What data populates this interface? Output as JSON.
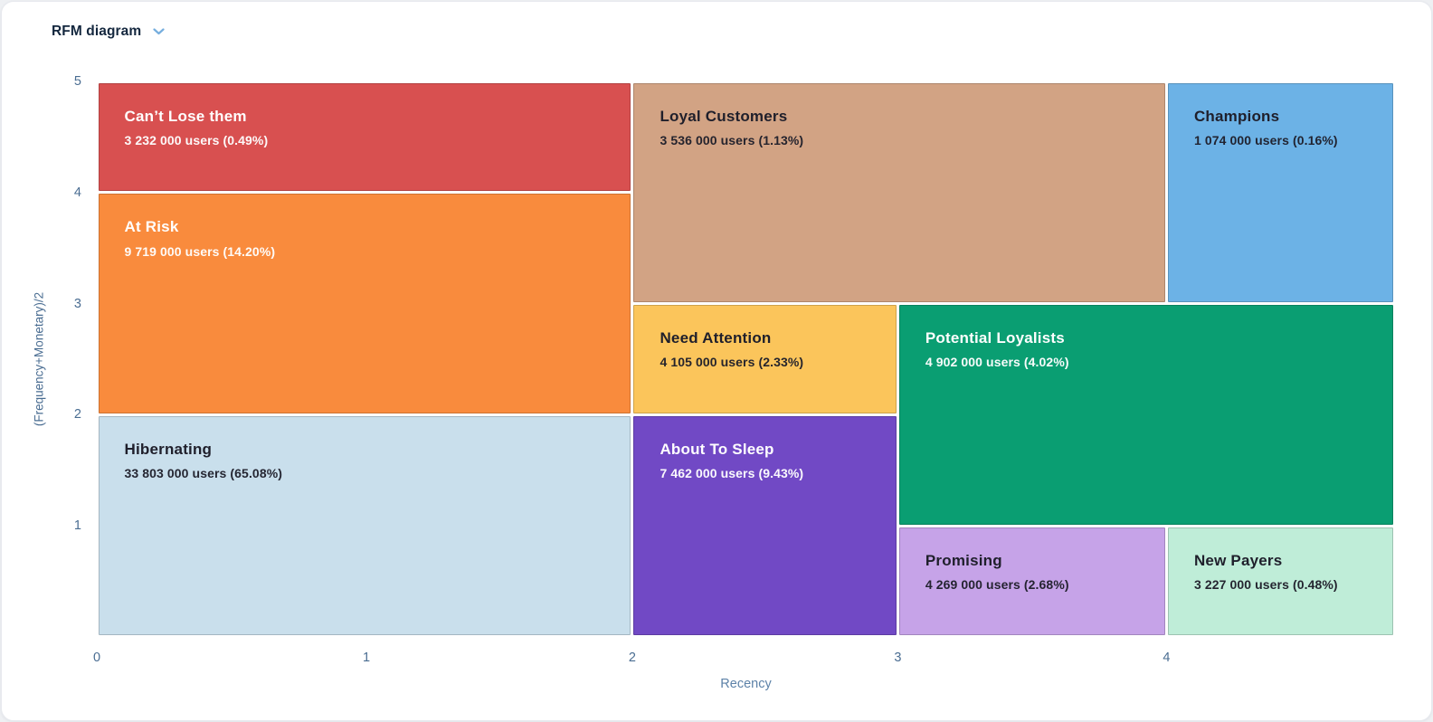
{
  "header": {
    "title": "RFM diagram",
    "dropdown_icon": "chevron-down-icon"
  },
  "colors": {
    "page_bg": "#eef0f3",
    "card_bg": "#ffffff",
    "title": "#14273e",
    "tick": "#4a6d92",
    "axis_label": "#5d82a8",
    "accent_blue": "#76aede",
    "dark_text": "#1f1f2b",
    "light_text": "#ffffff"
  },
  "chart_data": {
    "type": "heatmap",
    "variant": "RFM segment mosaic (rectangular area map)",
    "title": "RFM diagram",
    "xlabel": "Recency",
    "ylabel": "(Frequency+Monetary)/2",
    "x_range": [
      0,
      5
    ],
    "y_range": [
      0,
      5
    ],
    "x_ticks": [
      0,
      1,
      2,
      3,
      4
    ],
    "y_ticks": [
      1,
      2,
      3,
      4,
      5
    ],
    "grid": false,
    "legend": false,
    "x_stops": [
      0,
      0.2077,
      0.4125,
      0.617,
      0.824,
      1.0
    ],
    "segments": [
      {
        "name": "Can’t Lose them",
        "users": 3232000,
        "users_text": "3 232 000",
        "percent": "0.49%",
        "users_label": "3 232 000 users (0.49%)",
        "x0": 0,
        "x1": 2,
        "y0": 4,
        "y1": 5,
        "color": "#d85050",
        "text": "light"
      },
      {
        "name": "Loyal Customers",
        "users": 3536000,
        "users_text": "3 536 000",
        "percent": "1.13%",
        "users_label": "3 536 000 users (1.13%)",
        "x0": 2,
        "x1": 4,
        "y0": 3,
        "y1": 5,
        "color": "#d2a384",
        "text": "dark"
      },
      {
        "name": "Champions",
        "users": 1074000,
        "users_text": "1 074 000",
        "percent": "0.16%",
        "users_label": "1 074 000 users (0.16%)",
        "x0": 4,
        "x1": 5,
        "y0": 3,
        "y1": 5,
        "color": "#6cb2e6",
        "text": "dark"
      },
      {
        "name": "At Risk",
        "users": 9719000,
        "users_text": "9 719 000",
        "percent": "14.20%",
        "users_label": "9 719 000 users (14.20%)",
        "x0": 0,
        "x1": 2,
        "y0": 2,
        "y1": 4,
        "color": "#f98b3d",
        "text": "light"
      },
      {
        "name": "Need Attention",
        "users": 4105000,
        "users_text": "4 105 000",
        "percent": "2.33%",
        "users_label": "4 105 000 users (2.33%)",
        "x0": 2,
        "x1": 3,
        "y0": 2,
        "y1": 3,
        "color": "#fbc55b",
        "text": "dark"
      },
      {
        "name": "Potential Loyalists",
        "users": 4902000,
        "users_text": "4 902 000",
        "percent": "4.02%",
        "users_label": "4 902 000 users (4.02%)",
        "x0": 3,
        "x1": 5,
        "y0": 1,
        "y1": 3,
        "color": "#0a9e72",
        "text": "light"
      },
      {
        "name": "Hibernating",
        "users": 33803000,
        "users_text": "33 803 000",
        "percent": "65.08%",
        "users_label": "33 803 000 users (65.08%)",
        "x0": 0,
        "x1": 2,
        "y0": 0,
        "y1": 2,
        "color": "#c9dfec",
        "text": "dark"
      },
      {
        "name": "About To Sleep",
        "users": 7462000,
        "users_text": "7 462 000",
        "percent": "9.43%",
        "users_label": "7 462 000 users (9.43%)",
        "x0": 2,
        "x1": 3,
        "y0": 0,
        "y1": 2,
        "color": "#7149c5",
        "text": "light"
      },
      {
        "name": "Promising",
        "users": 4269000,
        "users_text": "4 269 000",
        "percent": "2.68%",
        "users_label": "4 269 000 users (2.68%)",
        "x0": 3,
        "x1": 4,
        "y0": 0,
        "y1": 1,
        "color": "#c6a3e8",
        "text": "dark"
      },
      {
        "name": "New Payers",
        "users": 3227000,
        "users_text": "3 227 000",
        "percent": "0.48%",
        "users_label": "3 227 000 users (0.48%)",
        "x0": 4,
        "x1": 5,
        "y0": 0,
        "y1": 1,
        "color": "#bfedd8",
        "text": "dark"
      }
    ]
  }
}
